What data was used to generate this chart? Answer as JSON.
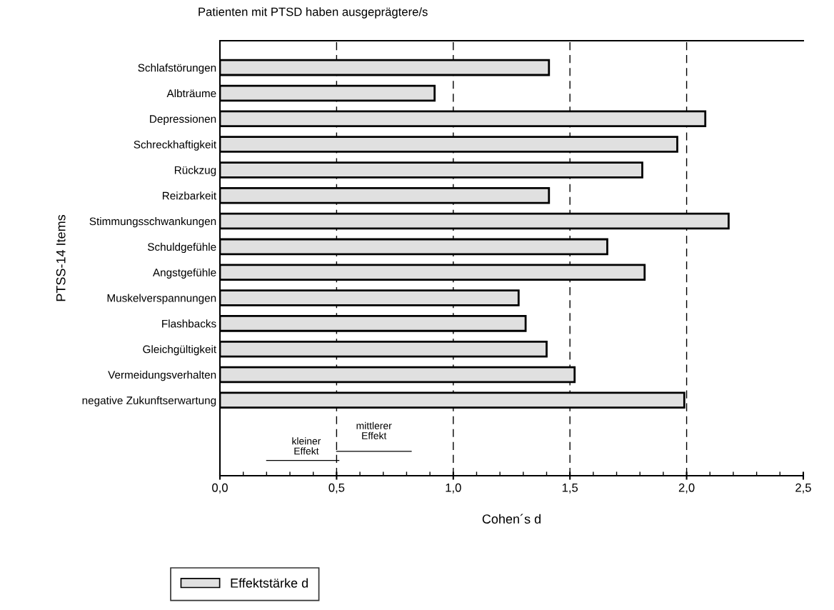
{
  "chart_data": {
    "type": "bar",
    "orientation": "horizontal",
    "title": "Patienten mit PTSD haben ausgeprägtere/s",
    "xlabel": "Cohen´s d",
    "ylabel": "PTSS-14 Items",
    "categories": [
      "Schlafstörungen",
      "Albträume",
      "Depressionen",
      "Schreckhaftigkeit",
      "Rückzug",
      "Reizbarkeit",
      "Stimmungsschwankungen",
      "Schuldgefühle",
      "Angstgefühle",
      "Muskelverspannungen",
      "Flashbacks",
      "Gleichgültigkeit",
      "Vermeidungsverhalten",
      "negative Zukunftserwartung"
    ],
    "series": [
      {
        "name": "Effektstärke d",
        "color": "#e0e0e0",
        "values": [
          1.41,
          0.92,
          2.08,
          1.96,
          1.81,
          1.41,
          2.18,
          1.66,
          1.82,
          1.28,
          1.31,
          1.4,
          1.52,
          1.99
        ]
      }
    ],
    "xlim": [
      0,
      2.5
    ],
    "xticks": [
      {
        "value": 0,
        "label": "0,0"
      },
      {
        "value": 0.5,
        "label": "0,5"
      },
      {
        "value": 1.0,
        "label": "1,0"
      },
      {
        "value": 1.5,
        "label": "1,5"
      },
      {
        "value": 2.0,
        "label": "2,0"
      },
      {
        "value": 2.5,
        "label": "2,5"
      }
    ],
    "ref_lines": [
      {
        "axis": "x",
        "value": 0.5,
        "color": "#000000",
        "line_style": "dashed"
      },
      {
        "axis": "x",
        "value": 1.0,
        "color": "#000000",
        "line_style": "dashed"
      },
      {
        "axis": "x",
        "value": 1.5,
        "color": "#000000",
        "line_style": "dashed"
      },
      {
        "axis": "x",
        "value": 2.0,
        "color": "#000000",
        "line_style": "dashed"
      }
    ],
    "annotations": [
      "kleiner\nEffekt",
      "mittlerer\nEffekt"
    ],
    "grid": false,
    "legend": "bottom left"
  }
}
